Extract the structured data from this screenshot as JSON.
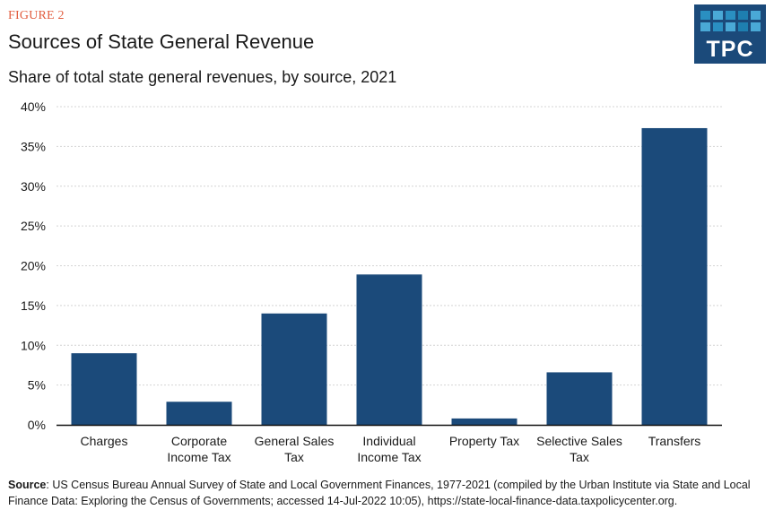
{
  "header": {
    "figure_label": "FIGURE 2",
    "title": "Sources of State General Revenue",
    "subtitle": "Share of total state general revenues, by source, 2021"
  },
  "logo": {
    "text": "TPC",
    "background": "#1b4a7a",
    "tile_colors": [
      "#2a8fc1",
      "#4aa9d6",
      "#2a8fc1",
      "#1e7fb0",
      "#4aa9d6",
      "#4aa9d6",
      "#2a8fc1",
      "#4aa9d6",
      "#1e7fb0",
      "#4aa9d6"
    ]
  },
  "chart_data": {
    "type": "bar",
    "title": "Sources of State General Revenue",
    "subtitle": "Share of total state general revenues, by source, 2021",
    "xlabel": "",
    "ylabel": "",
    "categories": [
      [
        "Charges"
      ],
      [
        "Corporate",
        "Income Tax"
      ],
      [
        "General Sales",
        "Tax"
      ],
      [
        "Individual",
        "Income Tax"
      ],
      [
        "Property Tax"
      ],
      [
        "Selective Sales",
        "Tax"
      ],
      [
        "Transfers"
      ]
    ],
    "values": [
      9.0,
      2.9,
      14.0,
      18.9,
      0.8,
      6.6,
      37.3
    ],
    "unit": "%",
    "ylim": [
      0,
      40
    ],
    "yticks": [
      0,
      5,
      10,
      15,
      20,
      25,
      30,
      35,
      40
    ],
    "ytick_labels": [
      "0%",
      "5%",
      "10%",
      "15%",
      "20%",
      "25%",
      "30%",
      "35%",
      "40%"
    ],
    "grid": true,
    "legend": "none",
    "bar_color": "#1b4a7a"
  },
  "source": {
    "label": "Source",
    "text": ": US Census Bureau Annual Survey of State and Local Government Finances, 1977-2021 (compiled by the Urban Institute via State and Local Finance Data: Exploring the Census of Governments; accessed 14-Jul-2022 10:05), https://state-local-finance-data.taxpolicycenter.org."
  }
}
